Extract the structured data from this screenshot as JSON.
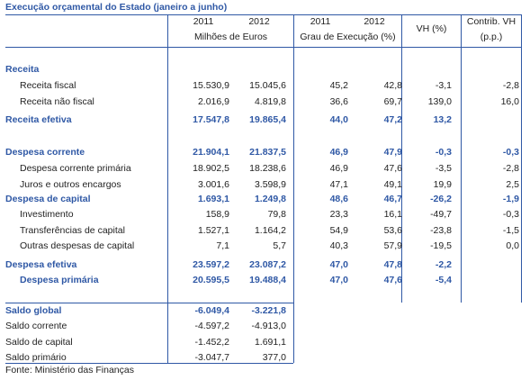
{
  "title": "Execução orçamental do Estado (janeiro a junho)",
  "header": {
    "y2011a": "2011",
    "y2012a": "2012",
    "y2011b": "2011",
    "y2012b": "2012",
    "vh": "VH (%)",
    "contrib_line1": "Contrib. VH",
    "contrib_line2": "(p.p.)",
    "unit_a": "Milhões de Euros",
    "unit_b": "Grau de Execução (%)"
  },
  "rows": [
    {
      "label": "Receita",
      "v": [
        "",
        "",
        "",
        "",
        "",
        ""
      ]
    },
    {
      "label": "Receita fiscal",
      "v": [
        "15.530,9",
        "15.045,6",
        "45,2",
        "42,8",
        "-3,1",
        "-2,8"
      ]
    },
    {
      "label": "Receita não fiscal",
      "v": [
        "2.016,9",
        "4.819,8",
        "36,6",
        "69,7",
        "139,0",
        "16,0"
      ]
    },
    {
      "label": "Receita efetiva",
      "v": [
        "17.547,8",
        "19.865,4",
        "44,0",
        "47,2",
        "13,2",
        ""
      ]
    },
    {
      "label": "Despesa corrente",
      "v": [
        "21.904,1",
        "21.837,5",
        "46,9",
        "47,9",
        "-0,3",
        "-0,3"
      ]
    },
    {
      "label": "Despesa corrente primária",
      "v": [
        "18.902,5",
        "18.238,6",
        "46,9",
        "47,6",
        "-3,5",
        "-2,8"
      ]
    },
    {
      "label": "Juros e outros encargos",
      "v": [
        "3.001,6",
        "3.598,9",
        "47,1",
        "49,1",
        "19,9",
        "2,5"
      ]
    },
    {
      "label": "Despesa de capital",
      "v": [
        "1.693,1",
        "1.249,8",
        "48,6",
        "46,7",
        "-26,2",
        "-1,9"
      ]
    },
    {
      "label": "Investimento",
      "v": [
        "158,9",
        "79,8",
        "23,3",
        "16,1",
        "-49,7",
        "-0,3"
      ]
    },
    {
      "label": "Transferências de capital",
      "v": [
        "1.527,1",
        "1.164,2",
        "54,9",
        "53,6",
        "-23,8",
        "-1,5"
      ]
    },
    {
      "label": "Outras despesas de capital",
      "v": [
        "7,1",
        "5,7",
        "40,3",
        "57,9",
        "-19,5",
        "0,0"
      ]
    },
    {
      "label": "Despesa efetiva",
      "v": [
        "23.597,2",
        "23.087,2",
        "47,0",
        "47,8",
        "-2,2",
        ""
      ]
    },
    {
      "label": "Despesa primária",
      "v": [
        "20.595,5",
        "19.488,4",
        "47,0",
        "47,6",
        "-5,4",
        ""
      ]
    },
    {
      "label": "Saldo global",
      "v": [
        "-6.049,4",
        "-3.221,8",
        "",
        "",
        "",
        ""
      ]
    },
    {
      "label": "Saldo corrente",
      "v": [
        "-4.597,2",
        "-4.913,0",
        "",
        "",
        "",
        ""
      ]
    },
    {
      "label": "Saldo de capital",
      "v": [
        "-1.452,2",
        "1.691,1",
        "",
        "",
        "",
        ""
      ]
    },
    {
      "label": "Saldo primário",
      "v": [
        "-3.047,7",
        "377,0",
        "",
        "",
        "",
        ""
      ]
    }
  ],
  "source": "Fonte: Ministério das Finanças",
  "colors": {
    "accent": "#2f58a5"
  }
}
